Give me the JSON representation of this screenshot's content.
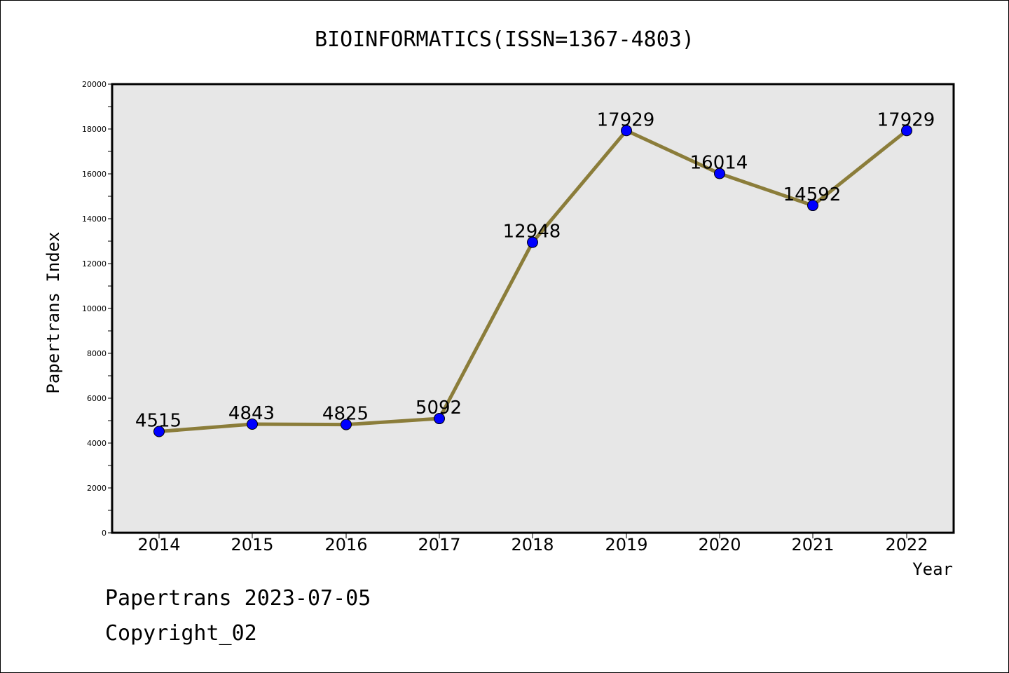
{
  "footer": {
    "line1": "Papertrans 2023-07-05",
    "line2": "Copyright_02"
  },
  "chart_data": {
    "type": "line",
    "title": "BIOINFORMATICS(ISSN=1367-4803)",
    "xlabel": "Year",
    "ylabel": "Papertrans Index",
    "categories": [
      "2014",
      "2015",
      "2016",
      "2017",
      "2018",
      "2019",
      "2020",
      "2021",
      "2022"
    ],
    "series": [
      {
        "values": [
          4515,
          4843,
          4825,
          5092,
          12948,
          17929,
          16014,
          14592,
          17929
        ]
      }
    ],
    "data_labels": [
      "4515",
      "4843",
      "4825",
      "5092",
      "12948",
      "17929",
      "16014",
      "14592",
      "17929"
    ],
    "ylim": [
      0,
      20000
    ],
    "yticks": [
      0,
      2000,
      4000,
      6000,
      8000,
      10000,
      12000,
      14000,
      16000,
      18000,
      20000
    ],
    "grid": false,
    "colors": {
      "line": "#8b7d3a",
      "marker": "#0000ff",
      "plot_background": "#e7e7e7"
    }
  }
}
